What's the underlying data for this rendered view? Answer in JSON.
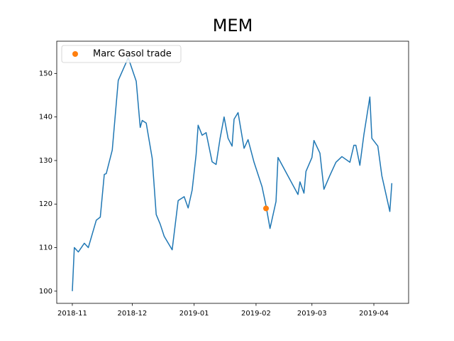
{
  "chart_data": {
    "type": "line",
    "title": "MEM",
    "xlim": [
      -7.8,
      168.4
    ],
    "xticks": [
      {
        "value": 0,
        "label": "2018-11"
      },
      {
        "value": 30,
        "label": "2018-12"
      },
      {
        "value": 61,
        "label": "2019-01"
      },
      {
        "value": 92,
        "label": "2019-02"
      },
      {
        "value": 120,
        "label": "2019-03"
      },
      {
        "value": 151,
        "label": "2019-04"
      }
    ],
    "ylim": [
      97.2,
      157.4
    ],
    "yticks": [
      100,
      110,
      120,
      130,
      140,
      150
    ],
    "legend": "upper left",
    "series": [
      {
        "type": "line",
        "color": "#1f77b4",
        "x": [
          0,
          1,
          3,
          6,
          8,
          12,
          14,
          16,
          17,
          20,
          23,
          28,
          32,
          34,
          35,
          37,
          40,
          42,
          44,
          46,
          50,
          53,
          56,
          58,
          60,
          62,
          63,
          65,
          67,
          70,
          72,
          74,
          76,
          78,
          80,
          81,
          83,
          86,
          88,
          91,
          95,
          97,
          99,
          102,
          103,
          113,
          114,
          116,
          117,
          120,
          121,
          124,
          126,
          129,
          132,
          135,
          139,
          141,
          142,
          144,
          146,
          149,
          150,
          153,
          155,
          159,
          160
        ],
        "values": [
          100,
          110,
          109,
          111,
          110,
          116.3,
          117,
          126.8,
          127,
          132.4,
          148.4,
          153.6,
          148.2,
          137.6,
          139.2,
          138.6,
          130.5,
          117.6,
          115.4,
          112.6,
          109.5,
          120.8,
          121.7,
          119.1,
          123.2,
          131.4,
          138.1,
          135.8,
          136.4,
          129.7,
          129.1,
          135.1,
          140,
          135.1,
          133.3,
          139.5,
          141,
          132.8,
          134.8,
          129.6,
          124,
          119.6,
          114.4,
          120.6,
          130.7,
          122.2,
          125.1,
          122.5,
          127.5,
          130.7,
          134.6,
          131.7,
          123.4,
          126.6,
          129.6,
          130.9,
          129.6,
          133.5,
          133.5,
          128.9,
          135.9,
          144.6,
          135.1,
          133.3,
          126.5,
          118.3,
          124.8
        ]
      },
      {
        "type": "scatter",
        "name": "Marc Gasol trade",
        "color": "#ff7f0e",
        "x": [
          97
        ],
        "values": [
          119
        ]
      }
    ]
  }
}
